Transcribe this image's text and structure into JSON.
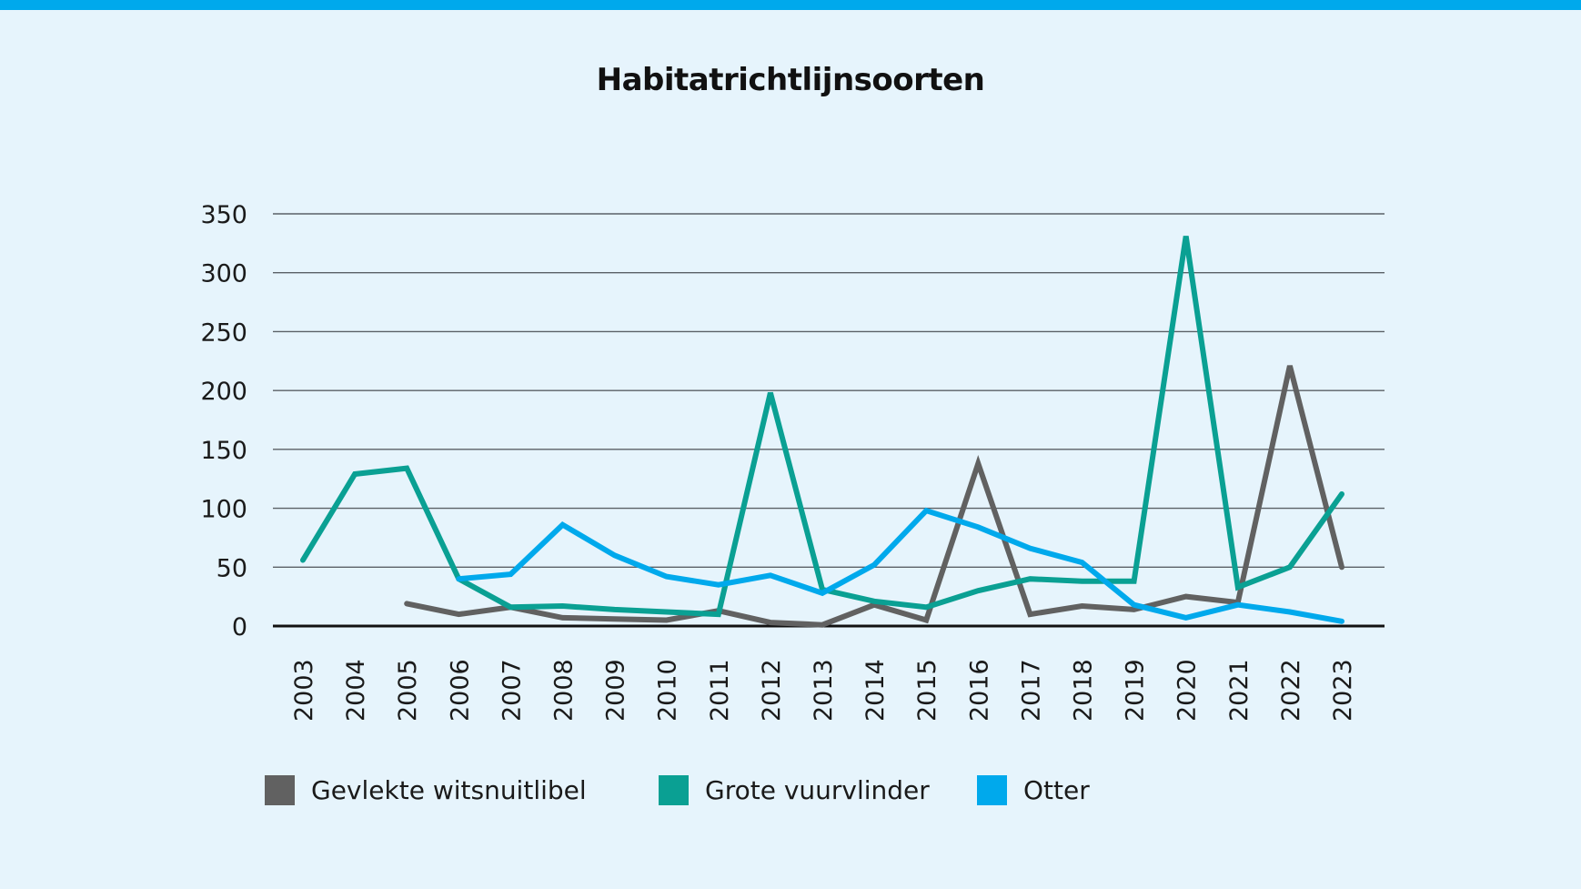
{
  "chart_data": {
    "type": "line",
    "title": "Habitatrichtlijnsoorten",
    "xlabel": "",
    "ylabel": "",
    "categories": [
      "2003",
      "2004",
      "2005",
      "2006",
      "2007",
      "2008",
      "2009",
      "2010",
      "2011",
      "2012",
      "2013",
      "2014",
      "2015",
      "2016",
      "2017",
      "2018",
      "2019",
      "2020",
      "2021",
      "2022",
      "2023"
    ],
    "yticks": [
      "0",
      "50",
      "100",
      "150",
      "200",
      "250",
      "300",
      "350"
    ],
    "ylim": [
      0,
      350
    ],
    "grid": "horizontal",
    "legend_position": "bottom",
    "series": [
      {
        "name": "Gevlekte witsnuitlibel",
        "color": "#616161",
        "values": [
          null,
          null,
          19,
          10,
          16,
          7,
          6,
          5,
          13,
          3,
          1,
          18,
          5,
          138,
          10,
          17,
          14,
          25,
          20,
          221,
          50
        ]
      },
      {
        "name": "Grote vuurvlinder",
        "color": "#0aa093",
        "values": [
          56,
          129,
          134,
          40,
          16,
          17,
          14,
          12,
          10,
          198,
          31,
          21,
          16,
          30,
          40,
          38,
          38,
          331,
          33,
          50,
          112
        ]
      },
      {
        "name": "Otter",
        "color": "#00a9ec",
        "values": [
          null,
          null,
          null,
          40,
          44,
          86,
          60,
          42,
          35,
          43,
          28,
          52,
          98,
          84,
          66,
          54,
          18,
          7,
          18,
          12,
          4
        ]
      }
    ]
  }
}
